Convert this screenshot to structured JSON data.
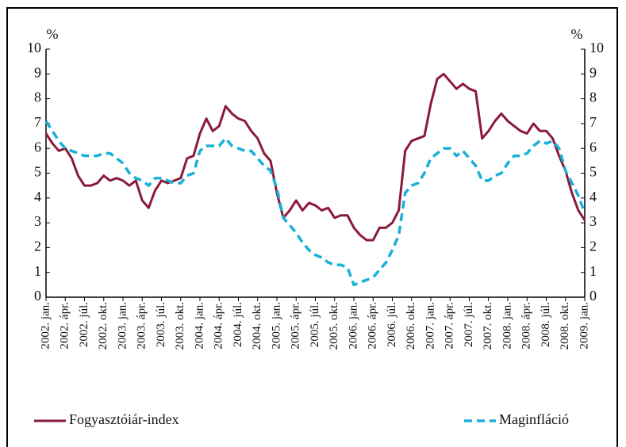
{
  "chart_data": {
    "type": "line",
    "y_label": "%",
    "y2_label": "%",
    "categories": [
      "2002. jan.",
      null,
      null,
      "2002. ápr.",
      null,
      null,
      "2002. júl.",
      null,
      null,
      "2002. okt.",
      null,
      null,
      "2003. jan.",
      null,
      null,
      "2003. ápr.",
      null,
      null,
      "2003. júl.",
      null,
      null,
      "2003. okt.",
      null,
      null,
      "2004. jan.",
      null,
      null,
      "2004. ápr.",
      null,
      null,
      "2004. júl.",
      null,
      null,
      "2004. okt.",
      null,
      null,
      "2005. jan.",
      null,
      null,
      "2005. ápr.",
      null,
      null,
      "2005. júl.",
      null,
      null,
      "2005. okt.",
      null,
      null,
      "2006. jan.",
      null,
      null,
      "2006. ápr.",
      null,
      null,
      "2006. júl.",
      null,
      null,
      "2006. okt.",
      null,
      null,
      "2007. jan.",
      null,
      null,
      "2007. ápr.",
      null,
      null,
      "2007. júl.",
      null,
      null,
      "2007. okt.",
      null,
      null,
      "2008. jan.",
      null,
      null,
      "2008. ápr.",
      null,
      null,
      "2008. júl.",
      null,
      null,
      "2008. okt.",
      null,
      null,
      "2009. jan."
    ],
    "series": [
      {
        "name": "Fogyasztóiár-index",
        "color": "#8b1a3a",
        "dash": false,
        "values": [
          6.6,
          6.2,
          5.9,
          6.0,
          5.6,
          4.9,
          4.5,
          4.5,
          4.6,
          4.9,
          4.7,
          4.8,
          4.7,
          4.5,
          4.7,
          3.9,
          3.6,
          4.3,
          4.7,
          4.6,
          4.7,
          4.8,
          5.6,
          5.7,
          6.6,
          7.2,
          6.7,
          6.9,
          7.7,
          7.4,
          7.2,
          7.1,
          6.7,
          6.4,
          5.8,
          5.5,
          4.2,
          3.2,
          3.5,
          3.9,
          3.5,
          3.8,
          3.7,
          3.5,
          3.6,
          3.2,
          3.3,
          3.3,
          2.8,
          2.5,
          2.3,
          2.3,
          2.8,
          2.8,
          3.0,
          3.5,
          5.9,
          6.3,
          6.4,
          6.5,
          7.8,
          8.8,
          9.0,
          8.7,
          8.4,
          8.6,
          8.4,
          8.3,
          6.4,
          6.7,
          7.1,
          7.4,
          7.1,
          6.9,
          6.7,
          6.6,
          7.0,
          6.7,
          6.7,
          6.4,
          5.7,
          5.1,
          4.2,
          3.5,
          3.1
        ]
      },
      {
        "name": "Maginfláció",
        "color": "#1ab0d8",
        "dash": true,
        "values": [
          7.1,
          6.7,
          6.3,
          6.0,
          5.9,
          5.8,
          5.7,
          5.7,
          5.7,
          5.8,
          5.8,
          5.6,
          5.4,
          5.0,
          4.8,
          4.7,
          4.5,
          4.8,
          4.8,
          4.7,
          4.6,
          4.6,
          4.9,
          5.0,
          5.9,
          6.1,
          6.1,
          6.1,
          6.4,
          6.1,
          6.0,
          5.9,
          5.9,
          5.6,
          5.3,
          5.1,
          4.4,
          3.2,
          2.9,
          2.6,
          2.2,
          1.9,
          1.7,
          1.6,
          1.4,
          1.3,
          1.3,
          1.2,
          0.5,
          0.6,
          0.7,
          0.8,
          1.1,
          1.4,
          1.9,
          2.5,
          4.2,
          4.5,
          4.6,
          5.0,
          5.6,
          5.8,
          6.0,
          6.0,
          5.7,
          5.9,
          5.6,
          5.3,
          4.7,
          4.7,
          4.9,
          5.0,
          5.4,
          5.7,
          5.7,
          5.8,
          6.1,
          6.3,
          6.2,
          6.3,
          6.0,
          5.1,
          4.6,
          4.1,
          3.4
        ]
      }
    ],
    "ylim": [
      0,
      10
    ],
    "yticks": [
      0,
      1,
      2,
      3,
      4,
      5,
      6,
      7,
      8,
      9,
      10
    ],
    "y2lim": [
      0,
      10
    ],
    "y2ticks": [
      0,
      1,
      2,
      3,
      4,
      5,
      6,
      7,
      8,
      9,
      10
    ],
    "grid": false,
    "legend": "bottom"
  }
}
